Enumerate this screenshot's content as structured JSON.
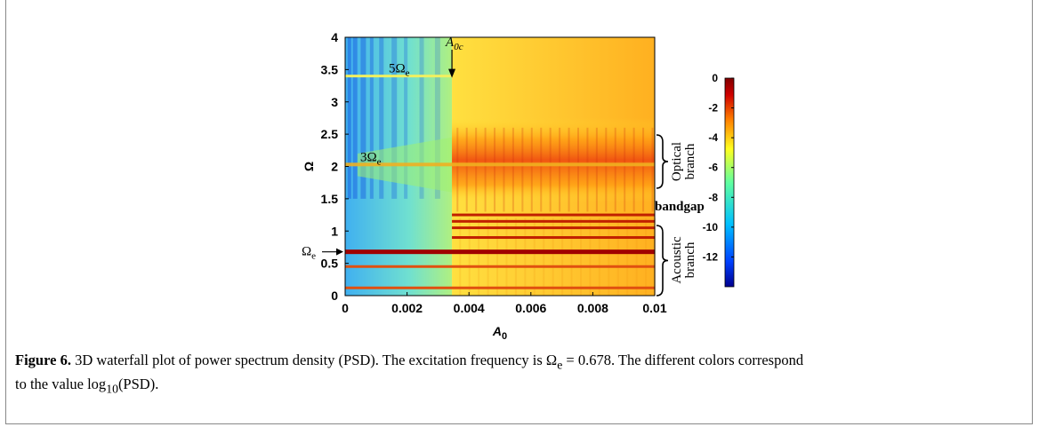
{
  "chart_data": {
    "type": "heatmap",
    "xlabel": "A",
    "xlabel_sub": "0",
    "ylabel": "Ω",
    "xlim": [
      0,
      0.01
    ],
    "ylim": [
      0,
      4
    ],
    "x_ticks": [
      "0",
      "0.002",
      "0.004",
      "0.006",
      "0.008",
      "0.01"
    ],
    "y_ticks": [
      "0",
      "0.5",
      "1",
      "1.5",
      "2",
      "2.5",
      "3",
      "3.5",
      "4"
    ],
    "colorbar": {
      "range": [
        -14,
        0
      ],
      "ticks": [
        "0",
        "-2",
        "-4",
        "-6",
        "-8",
        "-10",
        "-12"
      ],
      "colormap": [
        "#00008f",
        "#0040ff",
        "#00c0ff",
        "#60ffa0",
        "#ffff20",
        "#ff8000",
        "#d00000",
        "#800000"
      ]
    },
    "annotations": {
      "critical": {
        "label_main": "A",
        "label_sub": "0c",
        "x": 0.00345
      },
      "five_omega": {
        "label_main": "5Ω",
        "label_sub": "e",
        "y": 3.4
      },
      "three_omega": {
        "label_main": "3Ω",
        "label_sub": "e",
        "y": 2.03
      },
      "omega_e": {
        "label_main": "Ω",
        "label_sub": "e",
        "y": 0.678
      },
      "optical": "Optical\nbranch",
      "acoustic": "Acoustic\nbranch",
      "bandgap": "bandgap"
    },
    "bands": [
      0.12,
      0.45,
      0.678,
      0.9,
      1.05,
      1.15,
      1.25
    ]
  },
  "caption": {
    "label": "Figure 6.",
    "text1": " 3D waterfall plot of power spectrum density (PSD). The excitation frequency is Ω",
    "sub_e": "e",
    "text2": " = 0.678. The different colors correspond",
    "text3": "to the value log",
    "sub_10": "10",
    "text4": "(PSD)."
  }
}
